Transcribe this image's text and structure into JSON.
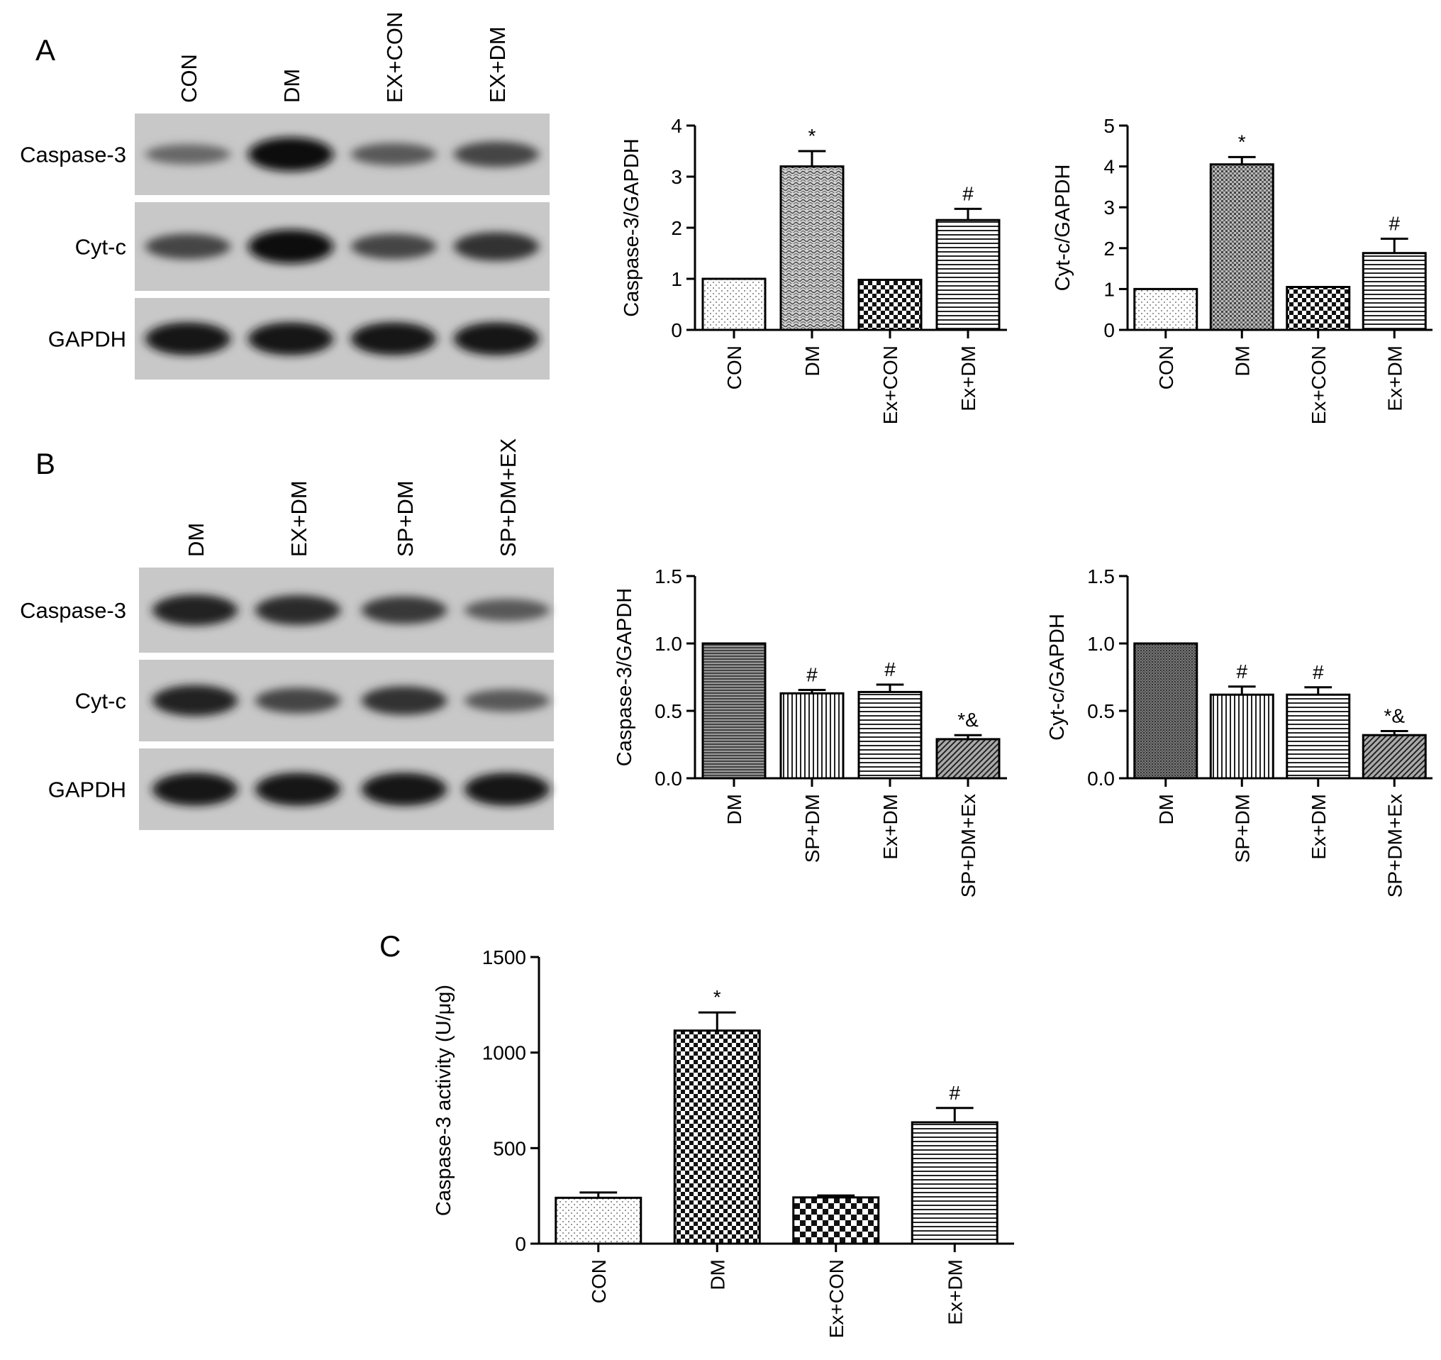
{
  "panel_labels": [
    "A",
    "B",
    "C"
  ],
  "blots": [
    {
      "lanes": [
        "CON",
        "DM",
        "EX+CON",
        "EX+DM"
      ],
      "rows": [
        {
          "label": "Caspase-3",
          "intensity": [
            0.35,
            1.0,
            0.45,
            0.6
          ]
        },
        {
          "label": "Cyt-c",
          "intensity": [
            0.6,
            1.0,
            0.6,
            0.75
          ]
        },
        {
          "label": "GAPDH",
          "intensity": [
            0.95,
            0.95,
            0.95,
            0.95
          ]
        }
      ]
    },
    {
      "lanes": [
        "DM",
        "EX+DM",
        "SP+DM",
        "SP+DM+EX"
      ],
      "rows": [
        {
          "label": "Caspase-3",
          "intensity": [
            0.85,
            0.8,
            0.7,
            0.45
          ]
        },
        {
          "label": "Cyt-c",
          "intensity": [
            0.85,
            0.6,
            0.75,
            0.45
          ]
        },
        {
          "label": "GAPDH",
          "intensity": [
            0.95,
            0.95,
            0.95,
            0.95
          ]
        }
      ]
    }
  ],
  "chart_data": [
    {
      "type": "bar",
      "panel": "A",
      "categories": [
        "CON",
        "DM",
        "Ex+CON",
        "Ex+DM"
      ],
      "values": [
        1.0,
        3.2,
        0.98,
        2.15
      ],
      "errors": [
        0,
        0.3,
        0,
        0.22
      ],
      "annotations": [
        "",
        "*",
        "",
        "#"
      ],
      "patterns": [
        "dots",
        "wave",
        "checker",
        "hlines"
      ],
      "ylabel": "Caspase-3/GAPDH",
      "ylim": [
        0,
        4
      ],
      "yticks": [
        0,
        1,
        2,
        3,
        4
      ],
      "ytick_labels": [
        "0",
        "1",
        "2",
        "3",
        "4"
      ]
    },
    {
      "type": "bar",
      "panel": "A",
      "categories": [
        "CON",
        "DM",
        "Ex+CON",
        "Ex+DM"
      ],
      "values": [
        1.0,
        4.05,
        1.05,
        1.88
      ],
      "errors": [
        0,
        0.18,
        0,
        0.35
      ],
      "annotations": [
        "",
        "*",
        "",
        "#"
      ],
      "patterns": [
        "dots",
        "grid",
        "checker",
        "hlines"
      ],
      "ylabel": "Cyt-c/GAPDH",
      "ylim": [
        0,
        5
      ],
      "yticks": [
        0,
        1,
        2,
        3,
        4,
        5
      ],
      "ytick_labels": [
        "0",
        "1",
        "2",
        "3",
        "4",
        "5"
      ]
    },
    {
      "type": "bar",
      "panel": "B",
      "categories": [
        "DM",
        "SP+DM",
        "Ex+DM",
        "SP+DM+Ex"
      ],
      "values": [
        1.0,
        0.63,
        0.64,
        0.29
      ],
      "errors": [
        0,
        0.025,
        0.055,
        0.03
      ],
      "annotations": [
        "",
        "#",
        "#",
        "*&"
      ],
      "patterns": [
        "hatch-h",
        "vlines",
        "hlines",
        "diag"
      ],
      "ylabel": "Caspase-3/GAPDH",
      "ylim": [
        0,
        1.5
      ],
      "yticks": [
        0,
        0.5,
        1.0,
        1.5
      ],
      "ytick_labels": [
        "0.0",
        "0.5",
        "1.0",
        "1.5"
      ]
    },
    {
      "type": "bar",
      "panel": "B",
      "categories": [
        "DM",
        "SP+DM",
        "Ex+DM",
        "SP+DM+Ex"
      ],
      "values": [
        1.0,
        0.62,
        0.62,
        0.32
      ],
      "errors": [
        0,
        0.06,
        0.055,
        0.03
      ],
      "annotations": [
        "",
        "#",
        "#",
        "*&"
      ],
      "patterns": [
        "dense",
        "vlines",
        "hlines",
        "diag"
      ],
      "ylabel": "Cyt-c/GAPDH",
      "ylim": [
        0,
        1.5
      ],
      "yticks": [
        0,
        0.5,
        1.0,
        1.5
      ],
      "ytick_labels": [
        "0.0",
        "0.5",
        "1.0",
        "1.5"
      ]
    },
    {
      "type": "bar",
      "panel": "C",
      "categories": [
        "CON",
        "DM",
        "Ex+CON",
        "Ex+DM"
      ],
      "values": [
        240,
        1115,
        242,
        635
      ],
      "errors": [
        28,
        95,
        10,
        75
      ],
      "annotations": [
        "",
        "*",
        "",
        "#"
      ],
      "patterns": [
        "dots",
        "checker",
        "checker-big",
        "hlines"
      ],
      "ylabel": "Caspase-3 activity (U/μg)",
      "ylim": [
        0,
        1500
      ],
      "yticks": [
        0,
        500,
        1000,
        1500
      ],
      "ytick_labels": [
        "0",
        "500",
        "1000",
        "1500"
      ]
    }
  ]
}
